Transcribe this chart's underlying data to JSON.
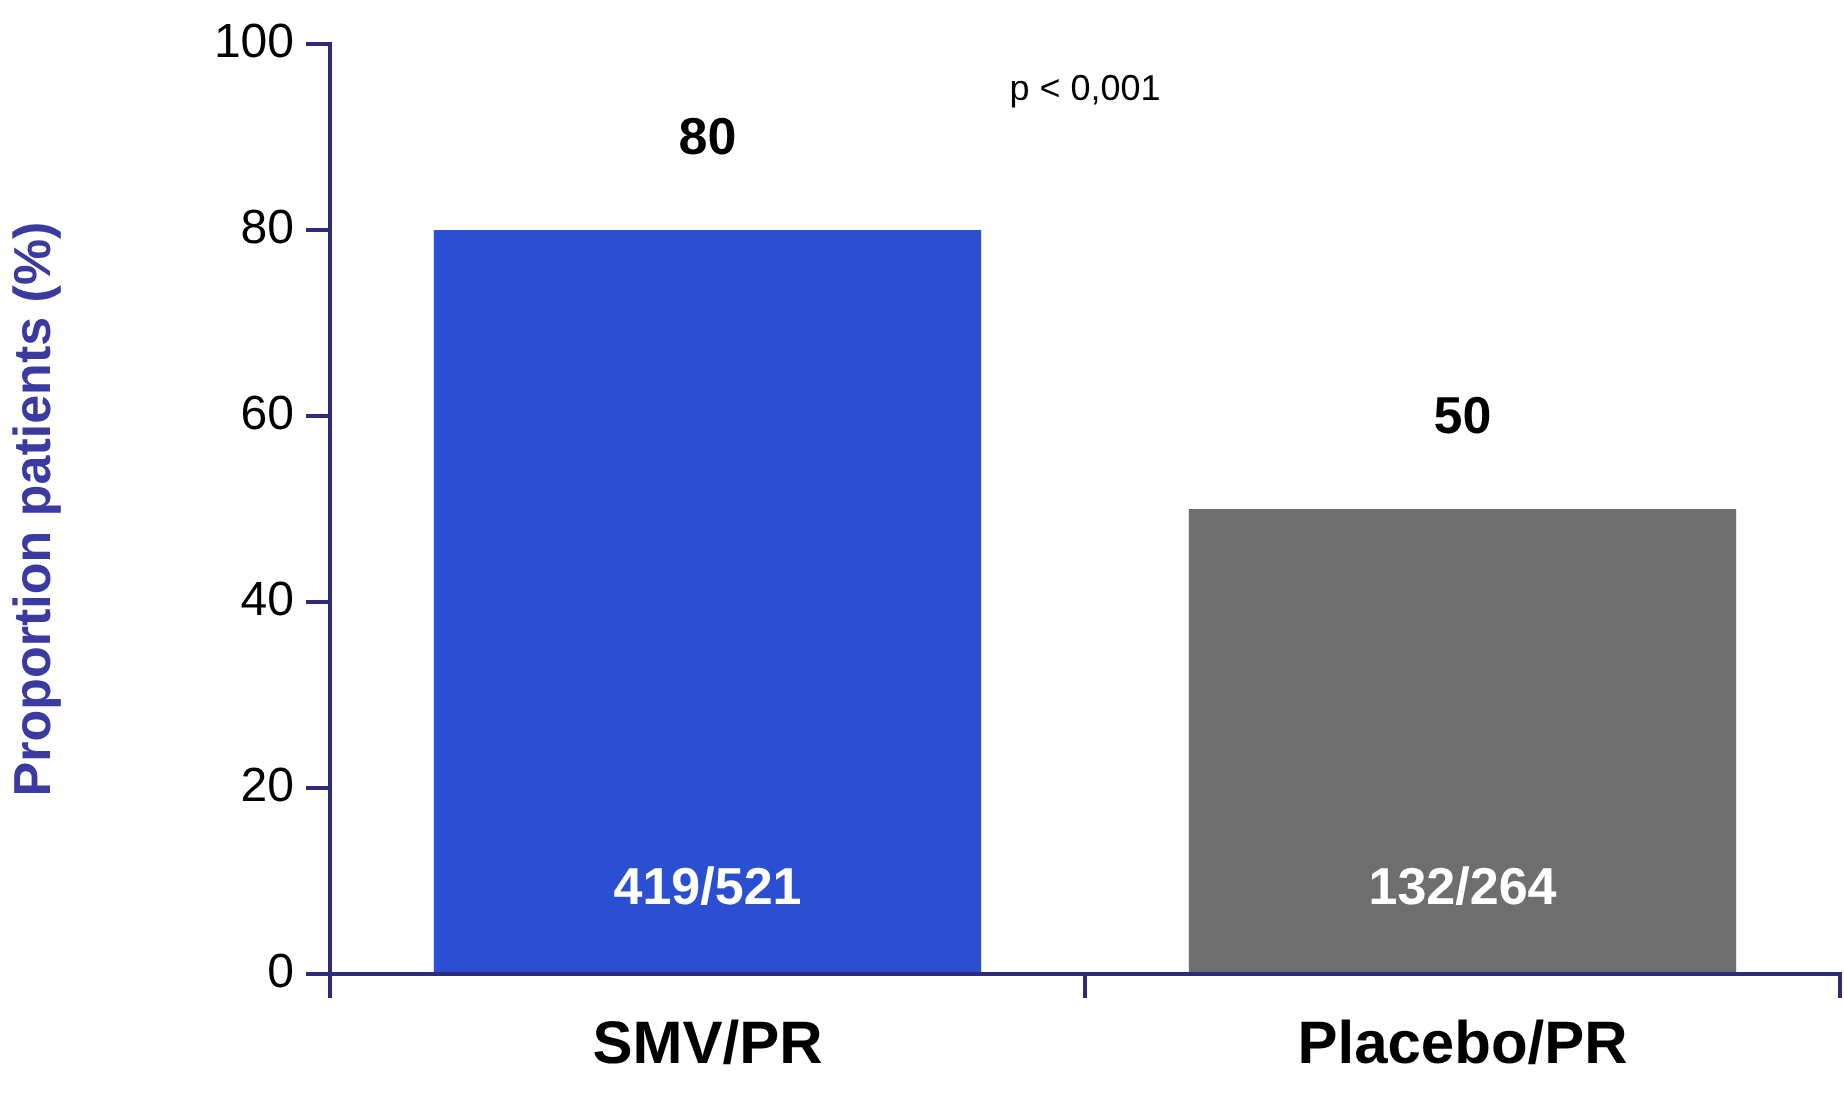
{
  "chart_data": {
    "type": "bar",
    "ylabel": "Proportion patients (%)",
    "categories": [
      "SMV/PR",
      "Placebo/PR"
    ],
    "values": [
      80,
      50
    ],
    "colors": [
      "#2a4fd0",
      "#6e6e6e"
    ],
    "ylim": [
      0,
      100
    ],
    "yticks": [
      0,
      20,
      40,
      60,
      80,
      100
    ],
    "grid": false,
    "legend": false,
    "data_labels": true,
    "annotations": [
      "419/521",
      "132/264",
      "p < 0,001"
    ]
  }
}
